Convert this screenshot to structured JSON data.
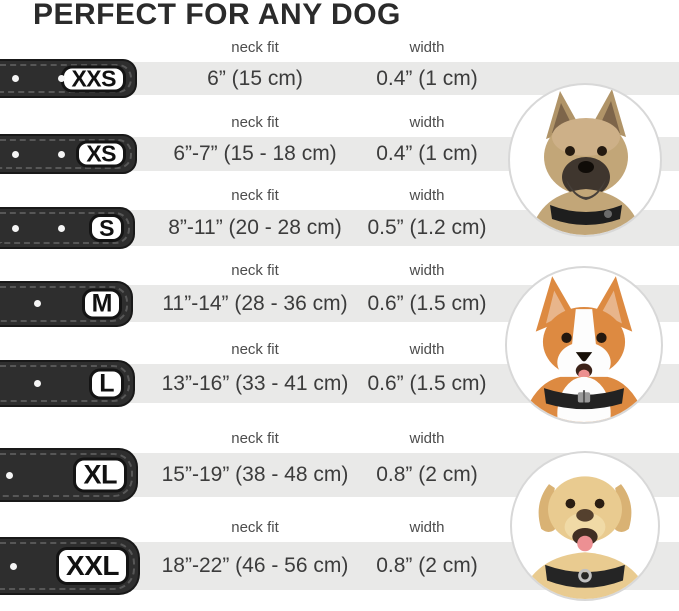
{
  "title": "PERFECT FOR ANY DOG",
  "chart_data": {
    "type": "table",
    "title": "PERFECT FOR ANY DOG",
    "column_headers": {
      "neck_fit": "neck fit",
      "width": "width"
    },
    "columns": [
      "size",
      "neck fit",
      "width"
    ],
    "rows": [
      {
        "size": "XXS",
        "neck_fit": "6” (15 cm)",
        "width": "0.4” (1 cm)"
      },
      {
        "size": "XS",
        "neck_fit": "6”-7” (15 - 18 cm)",
        "width": "0.4” (1 cm)"
      },
      {
        "size": "S",
        "neck_fit": "8”-11” (20 - 28 cm)",
        "width": "0.5” (1.2 cm)"
      },
      {
        "size": "M",
        "neck_fit": "11”-14” (28 - 36 cm)",
        "width": "0.6” (1.5 cm)"
      },
      {
        "size": "L",
        "neck_fit": "13”-16” (33 - 41 cm)",
        "width": "0.6” (1.5 cm)"
      },
      {
        "size": "XL",
        "neck_fit": "15”-19” (38 - 48 cm)",
        "width": "0.8” (2 cm)"
      },
      {
        "size": "XXL",
        "neck_fit": "18”-22” (46 - 56 cm)",
        "width": "0.8” (2 cm)"
      }
    ]
  },
  "dogs": [
    {
      "name": "terrier-photo",
      "breed": "terrier"
    },
    {
      "name": "corgi-photo",
      "breed": "corgi"
    },
    {
      "name": "labrador-photo",
      "breed": "labrador"
    }
  ],
  "colors": {
    "strap": "#2e2e2e",
    "band": "#e9e9e8",
    "title_text": "#2b2b2b",
    "value_text": "#3c3c3c",
    "header_text": "#4c4c4c",
    "circle_border": "#d8d8d8"
  }
}
